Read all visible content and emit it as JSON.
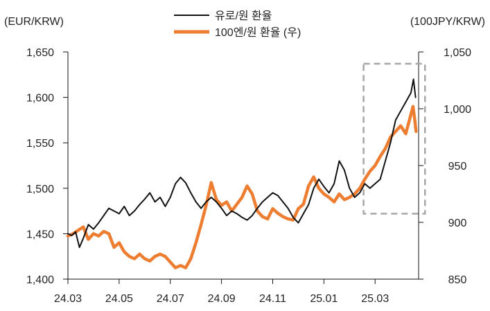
{
  "chart_data": {
    "type": "line",
    "title": "",
    "left_axis": {
      "unit_label": "(EUR/KRW)",
      "ylim": [
        1400,
        1650
      ],
      "ticks": [
        1400,
        1450,
        1500,
        1550,
        1600,
        1650
      ],
      "tick_labels": [
        "1,400",
        "1,450",
        "1,500",
        "1,550",
        "1,600",
        "1,650"
      ]
    },
    "right_axis": {
      "unit_label": "(100JPY/KRW)",
      "ylim": [
        850,
        1050
      ],
      "ticks": [
        850,
        900,
        950,
        1000,
        1050
      ],
      "tick_labels": [
        "850",
        "900",
        "950",
        "1,000",
        "1,050"
      ]
    },
    "x_axis": {
      "xlim": [
        0,
        13.7
      ],
      "ticks": [
        0,
        2,
        4,
        6,
        8,
        10,
        12
      ],
      "tick_labels": [
        "24.03",
        "24.05",
        "24.07",
        "24.09",
        "24.11",
        "25.01",
        "25.03"
      ]
    },
    "series": [
      {
        "name": "유로/원 환율",
        "axis": "left",
        "color": "#111111",
        "points": [
          [
            0.0,
            1450
          ],
          [
            0.15,
            1448
          ],
          [
            0.3,
            1452
          ],
          [
            0.45,
            1435
          ],
          [
            0.6,
            1445
          ],
          [
            0.8,
            1460
          ],
          [
            1.0,
            1455
          ],
          [
            1.2,
            1462
          ],
          [
            1.4,
            1470
          ],
          [
            1.6,
            1478
          ],
          [
            1.8,
            1475
          ],
          [
            2.0,
            1472
          ],
          [
            2.2,
            1480
          ],
          [
            2.4,
            1470
          ],
          [
            2.6,
            1475
          ],
          [
            2.8,
            1482
          ],
          [
            3.0,
            1488
          ],
          [
            3.2,
            1495
          ],
          [
            3.4,
            1485
          ],
          [
            3.6,
            1490
          ],
          [
            3.8,
            1480
          ],
          [
            4.0,
            1490
          ],
          [
            4.2,
            1505
          ],
          [
            4.4,
            1512
          ],
          [
            4.6,
            1506
          ],
          [
            4.8,
            1495
          ],
          [
            5.0,
            1485
          ],
          [
            5.2,
            1478
          ],
          [
            5.4,
            1485
          ],
          [
            5.6,
            1490
          ],
          [
            5.8,
            1485
          ],
          [
            6.0,
            1478
          ],
          [
            6.2,
            1470
          ],
          [
            6.4,
            1475
          ],
          [
            6.6,
            1472
          ],
          [
            6.8,
            1468
          ],
          [
            7.0,
            1465
          ],
          [
            7.2,
            1470
          ],
          [
            7.4,
            1478
          ],
          [
            7.6,
            1485
          ],
          [
            7.8,
            1490
          ],
          [
            8.0,
            1495
          ],
          [
            8.2,
            1492
          ],
          [
            8.4,
            1485
          ],
          [
            8.6,
            1478
          ],
          [
            8.8,
            1468
          ],
          [
            9.0,
            1462
          ],
          [
            9.2,
            1472
          ],
          [
            9.4,
            1482
          ],
          [
            9.6,
            1500
          ],
          [
            9.8,
            1510
          ],
          [
            10.0,
            1502
          ],
          [
            10.2,
            1495
          ],
          [
            10.4,
            1505
          ],
          [
            10.6,
            1530
          ],
          [
            10.8,
            1520
          ],
          [
            11.0,
            1500
          ],
          [
            11.2,
            1490
          ],
          [
            11.4,
            1495
          ],
          [
            11.6,
            1505
          ],
          [
            11.8,
            1500
          ],
          [
            12.0,
            1505
          ],
          [
            12.2,
            1510
          ],
          [
            12.4,
            1530
          ],
          [
            12.6,
            1550
          ],
          [
            12.8,
            1575
          ],
          [
            13.0,
            1585
          ],
          [
            13.2,
            1595
          ],
          [
            13.4,
            1605
          ],
          [
            13.5,
            1620
          ],
          [
            13.58,
            1600
          ]
        ]
      },
      {
        "name": "100엔/원 환율 (우)",
        "axis": "right",
        "color": "#ED7D31",
        "points": [
          [
            0.0,
            888
          ],
          [
            0.2,
            890
          ],
          [
            0.4,
            893
          ],
          [
            0.6,
            896
          ],
          [
            0.8,
            885
          ],
          [
            1.0,
            890
          ],
          [
            1.2,
            888
          ],
          [
            1.4,
            892
          ],
          [
            1.6,
            890
          ],
          [
            1.8,
            878
          ],
          [
            2.0,
            882
          ],
          [
            2.2,
            874
          ],
          [
            2.4,
            870
          ],
          [
            2.6,
            868
          ],
          [
            2.8,
            872
          ],
          [
            3.0,
            868
          ],
          [
            3.2,
            866
          ],
          [
            3.4,
            870
          ],
          [
            3.6,
            872
          ],
          [
            3.8,
            870
          ],
          [
            4.0,
            865
          ],
          [
            4.2,
            860
          ],
          [
            4.4,
            862
          ],
          [
            4.6,
            860
          ],
          [
            4.8,
            868
          ],
          [
            5.0,
            882
          ],
          [
            5.2,
            898
          ],
          [
            5.4,
            915
          ],
          [
            5.6,
            935
          ],
          [
            5.8,
            920
          ],
          [
            6.0,
            915
          ],
          [
            6.2,
            918
          ],
          [
            6.4,
            910
          ],
          [
            6.6,
            916
          ],
          [
            6.8,
            922
          ],
          [
            7.0,
            932
          ],
          [
            7.2,
            925
          ],
          [
            7.4,
            910
          ],
          [
            7.6,
            905
          ],
          [
            7.8,
            903
          ],
          [
            8.0,
            912
          ],
          [
            8.2,
            908
          ],
          [
            8.4,
            905
          ],
          [
            8.6,
            903
          ],
          [
            8.8,
            902
          ],
          [
            9.0,
            912
          ],
          [
            9.2,
            916
          ],
          [
            9.4,
            932
          ],
          [
            9.6,
            940
          ],
          [
            9.8,
            930
          ],
          [
            10.0,
            925
          ],
          [
            10.2,
            922
          ],
          [
            10.4,
            918
          ],
          [
            10.6,
            925
          ],
          [
            10.8,
            920
          ],
          [
            11.0,
            922
          ],
          [
            11.2,
            925
          ],
          [
            11.4,
            930
          ],
          [
            11.6,
            938
          ],
          [
            11.8,
            945
          ],
          [
            12.0,
            950
          ],
          [
            12.2,
            958
          ],
          [
            12.4,
            965
          ],
          [
            12.6,
            975
          ],
          [
            12.8,
            980
          ],
          [
            13.0,
            985
          ],
          [
            13.2,
            978
          ],
          [
            13.4,
            995
          ],
          [
            13.48,
            1002
          ],
          [
            13.55,
            990
          ],
          [
            13.6,
            980
          ]
        ]
      }
    ],
    "annotation": {
      "type": "dashed-box",
      "color": "#A6A6A6",
      "x_range": [
        11.55,
        13.95
      ],
      "left_y_range": [
        1472,
        1637
      ]
    }
  }
}
